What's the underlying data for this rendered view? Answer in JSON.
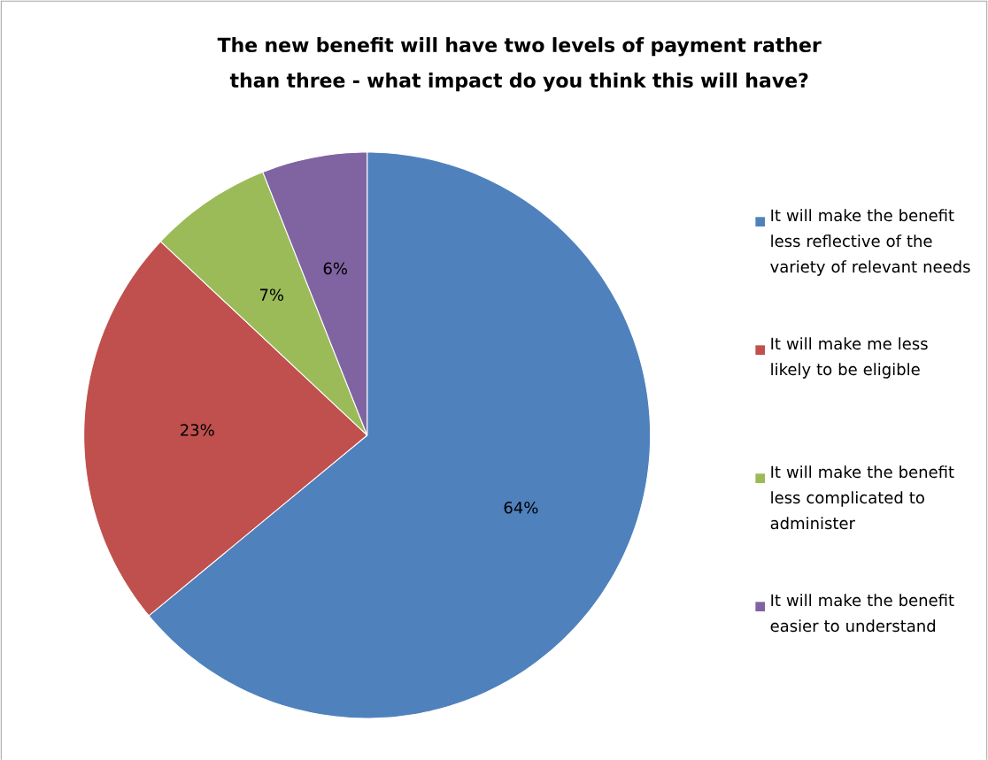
{
  "chart_data": {
    "type": "pie",
    "title": "The new benefit will have two levels of payment rather than three - what impact do you think this will have?",
    "categories": [
      "It will make the benefit less reflective of the variety of relevant needs",
      "It will make me less likely to be eligible",
      "It will make the benefit less complicated to administer",
      "It will make the benefit easier to understand"
    ],
    "values": [
      64,
      23,
      7,
      6
    ],
    "value_labels": [
      "64%",
      "23%",
      "7%",
      "6%"
    ],
    "colors": [
      "#4f81bd",
      "#c0504d",
      "#9bbb59",
      "#8064a2"
    ],
    "legend": "right"
  }
}
